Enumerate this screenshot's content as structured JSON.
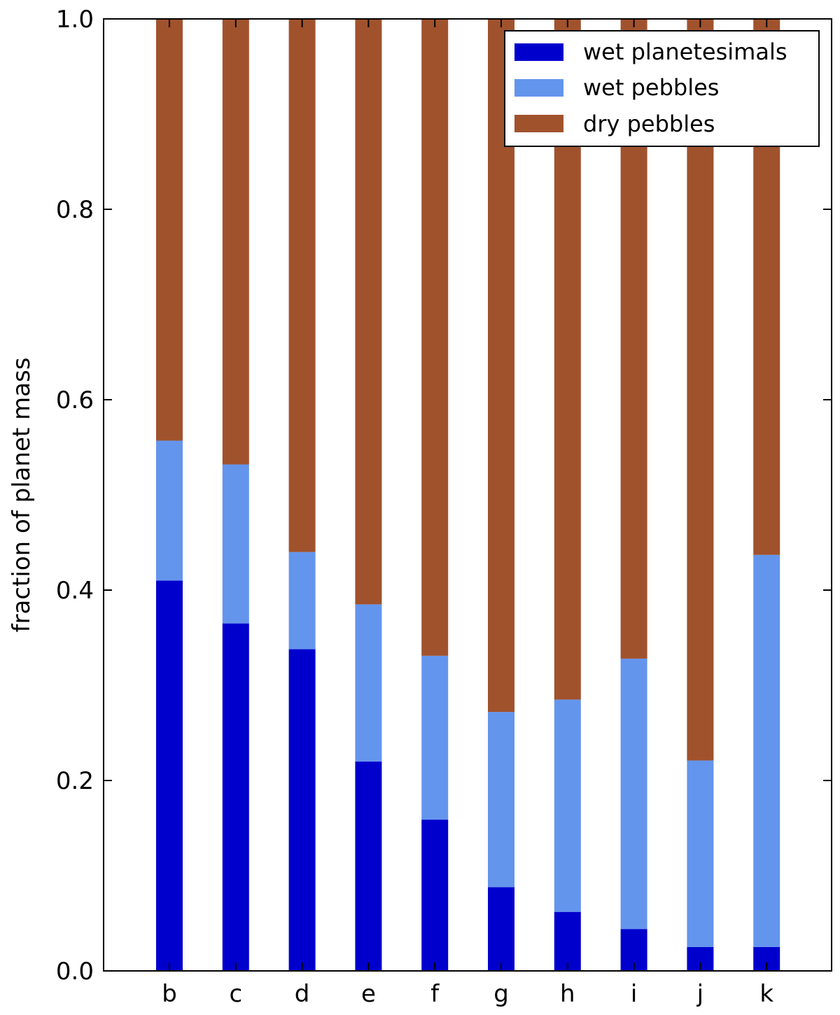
{
  "chart_data": {
    "type": "bar",
    "stacked": true,
    "title": "",
    "xlabel": "",
    "ylabel": "fraction of planet mass",
    "ylim": [
      0,
      1.0
    ],
    "yticks": [
      0.0,
      0.2,
      0.4,
      0.6,
      0.8,
      1.0
    ],
    "ytick_labels": [
      "0.0",
      "0.2",
      "0.4",
      "0.6",
      "0.8",
      "1.0"
    ],
    "categories": [
      "b",
      "c",
      "d",
      "e",
      "f",
      "g",
      "h",
      "i",
      "j",
      "k"
    ],
    "series": [
      {
        "name": "wet planetesimals",
        "color": "#0000cd",
        "values": [
          0.41,
          0.365,
          0.338,
          0.22,
          0.159,
          0.088,
          0.062,
          0.044,
          0.025,
          0.025
        ]
      },
      {
        "name": "wet pebbles",
        "color": "#6495ed",
        "values": [
          0.147,
          0.167,
          0.102,
          0.165,
          0.172,
          0.184,
          0.223,
          0.284,
          0.196,
          0.412
        ]
      },
      {
        "name": "dry pebbles",
        "color": "#a0522d",
        "values": [
          0.443,
          0.468,
          0.56,
          0.615,
          0.669,
          0.728,
          0.715,
          0.672,
          0.779,
          0.563
        ]
      }
    ],
    "legend": {
      "position": "top-right",
      "entries": [
        "wet planetesimals",
        "wet pebbles",
        "dry pebbles"
      ]
    },
    "grid": false
  }
}
